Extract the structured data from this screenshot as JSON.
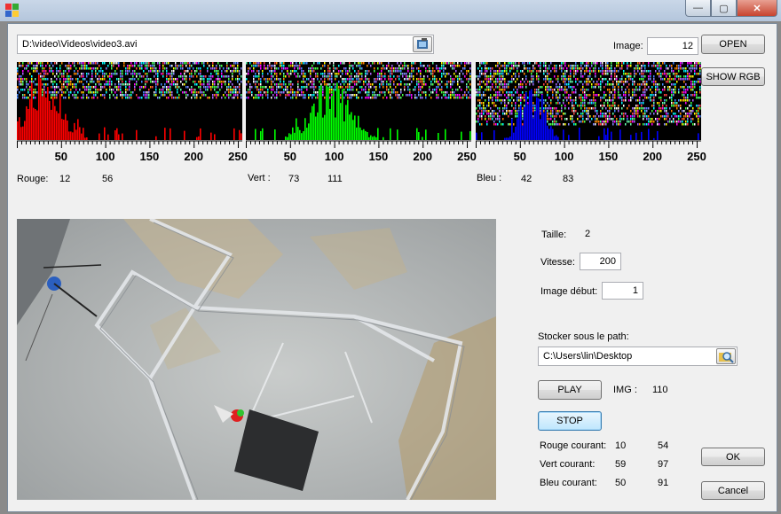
{
  "window": {
    "title": "",
    "buttons": {
      "minimize": "—",
      "maximize": "▢",
      "close": "✕"
    }
  },
  "file": {
    "path": "D:\\video\\Videos\\video3.avi",
    "browse_icon": "folder-browse-icon"
  },
  "image": {
    "label": "Image:",
    "value": "12"
  },
  "buttons": {
    "open": "OPEN",
    "show_rgb": "SHOW RGB",
    "play": "PLAY",
    "stop": "STOP",
    "ok": "OK",
    "cancel": "Cancel"
  },
  "histograms": {
    "tick_labels": [
      "50",
      "100",
      "150",
      "200",
      "250"
    ],
    "red": {
      "label": "Rouge:",
      "min": "12",
      "max": "56",
      "color": "#ff0000"
    },
    "green": {
      "label": "Vert :",
      "min": "73",
      "max": "111",
      "color": "#00ff00"
    },
    "blue": {
      "label": "Bleu :",
      "min": "42",
      "max": "83",
      "color": "#0000ff"
    }
  },
  "settings": {
    "taille_label": "Taille:",
    "taille_value": "2",
    "vitesse_label": "Vitesse:",
    "vitesse_value": "200",
    "image_debut_label": "Image début:",
    "image_debut_value": "1",
    "path_label": "Stocker sous le path:",
    "path_value": "C:\\Users\\lin\\Desktop"
  },
  "img_counter": {
    "label": "IMG :",
    "value": "110"
  },
  "current": {
    "rouge_label": "Rouge courant:",
    "rouge_min": "10",
    "rouge_max": "54",
    "vert_label": "Vert courant:",
    "vert_min": "59",
    "vert_max": "97",
    "bleu_label": "Bleu courant:",
    "bleu_min": "50",
    "bleu_max": "91"
  }
}
